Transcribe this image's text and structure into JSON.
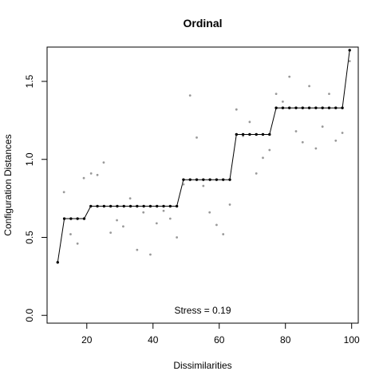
{
  "chart_data": {
    "type": "scatter",
    "title": "Ordinal",
    "xlabel": "Dissimilarities",
    "ylabel": "Configuration Distances",
    "xlim": [
      8,
      102
    ],
    "ylim": [
      -0.05,
      1.72
    ],
    "xticks": [
      20,
      40,
      60,
      80,
      100
    ],
    "yticks": [
      0.0,
      0.5,
      1.0,
      1.5
    ],
    "ytick_labels": [
      "0.0",
      "0.5",
      "1.0",
      "1.5"
    ],
    "annotation": "Stress = 0.19",
    "colors": {
      "observed": "#999999",
      "fitted": "#000000",
      "line": "#000000"
    },
    "observed": [
      [
        11.2,
        0.34
      ],
      [
        13.1,
        0.79
      ],
      [
        15.1,
        0.52
      ],
      [
        17.2,
        0.46
      ],
      [
        19.1,
        0.88
      ],
      [
        21.3,
        0.91
      ],
      [
        23.2,
        0.9
      ],
      [
        25.1,
        0.98
      ],
      [
        27.2,
        0.53
      ],
      [
        29.1,
        0.61
      ],
      [
        31.0,
        0.57
      ],
      [
        33.1,
        0.75
      ],
      [
        35.2,
        0.42
      ],
      [
        37.1,
        0.66
      ],
      [
        39.2,
        0.39
      ],
      [
        41.1,
        0.59
      ],
      [
        43.2,
        0.67
      ],
      [
        45.2,
        0.62
      ],
      [
        47.2,
        0.5
      ],
      [
        49.2,
        0.84
      ],
      [
        51.2,
        1.41
      ],
      [
        53.2,
        1.14
      ],
      [
        55.2,
        0.83
      ],
      [
        57.1,
        0.66
      ],
      [
        59.2,
        0.58
      ],
      [
        61.2,
        0.52
      ],
      [
        63.2,
        0.71
      ],
      [
        65.2,
        1.32
      ],
      [
        67.2,
        1.15
      ],
      [
        69.2,
        1.24
      ],
      [
        71.2,
        0.91
      ],
      [
        73.2,
        1.01
      ],
      [
        75.2,
        1.06
      ],
      [
        77.2,
        1.42
      ],
      [
        79.2,
        1.37
      ],
      [
        81.2,
        1.53
      ],
      [
        83.2,
        1.18
      ],
      [
        85.2,
        1.11
      ],
      [
        87.2,
        1.47
      ],
      [
        89.2,
        1.07
      ],
      [
        91.2,
        1.21
      ],
      [
        93.2,
        1.42
      ],
      [
        95.2,
        1.12
      ],
      [
        97.2,
        1.17
      ],
      [
        99.4,
        1.63
      ]
    ],
    "fitted": [
      [
        11.2,
        0.34
      ],
      [
        13.2,
        0.62
      ],
      [
        15.2,
        0.62
      ],
      [
        17.2,
        0.62
      ],
      [
        19.2,
        0.62
      ],
      [
        21.2,
        0.7
      ],
      [
        23.2,
        0.7
      ],
      [
        25.2,
        0.7
      ],
      [
        27.2,
        0.7
      ],
      [
        29.2,
        0.7
      ],
      [
        31.2,
        0.7
      ],
      [
        33.2,
        0.7
      ],
      [
        35.2,
        0.7
      ],
      [
        37.2,
        0.7
      ],
      [
        39.2,
        0.7
      ],
      [
        41.2,
        0.7
      ],
      [
        43.2,
        0.7
      ],
      [
        45.2,
        0.7
      ],
      [
        47.2,
        0.7
      ],
      [
        49.2,
        0.87
      ],
      [
        51.2,
        0.87
      ],
      [
        53.2,
        0.87
      ],
      [
        55.2,
        0.87
      ],
      [
        57.2,
        0.87
      ],
      [
        59.2,
        0.87
      ],
      [
        61.2,
        0.87
      ],
      [
        63.2,
        0.87
      ],
      [
        65.2,
        1.16
      ],
      [
        67.2,
        1.16
      ],
      [
        69.2,
        1.16
      ],
      [
        71.2,
        1.16
      ],
      [
        73.2,
        1.16
      ],
      [
        75.2,
        1.16
      ],
      [
        77.2,
        1.33
      ],
      [
        79.2,
        1.33
      ],
      [
        81.2,
        1.33
      ],
      [
        83.2,
        1.33
      ],
      [
        85.2,
        1.33
      ],
      [
        87.2,
        1.33
      ],
      [
        89.2,
        1.33
      ],
      [
        91.2,
        1.33
      ],
      [
        93.2,
        1.33
      ],
      [
        95.2,
        1.33
      ],
      [
        97.2,
        1.33
      ],
      [
        99.4,
        1.7
      ]
    ]
  }
}
